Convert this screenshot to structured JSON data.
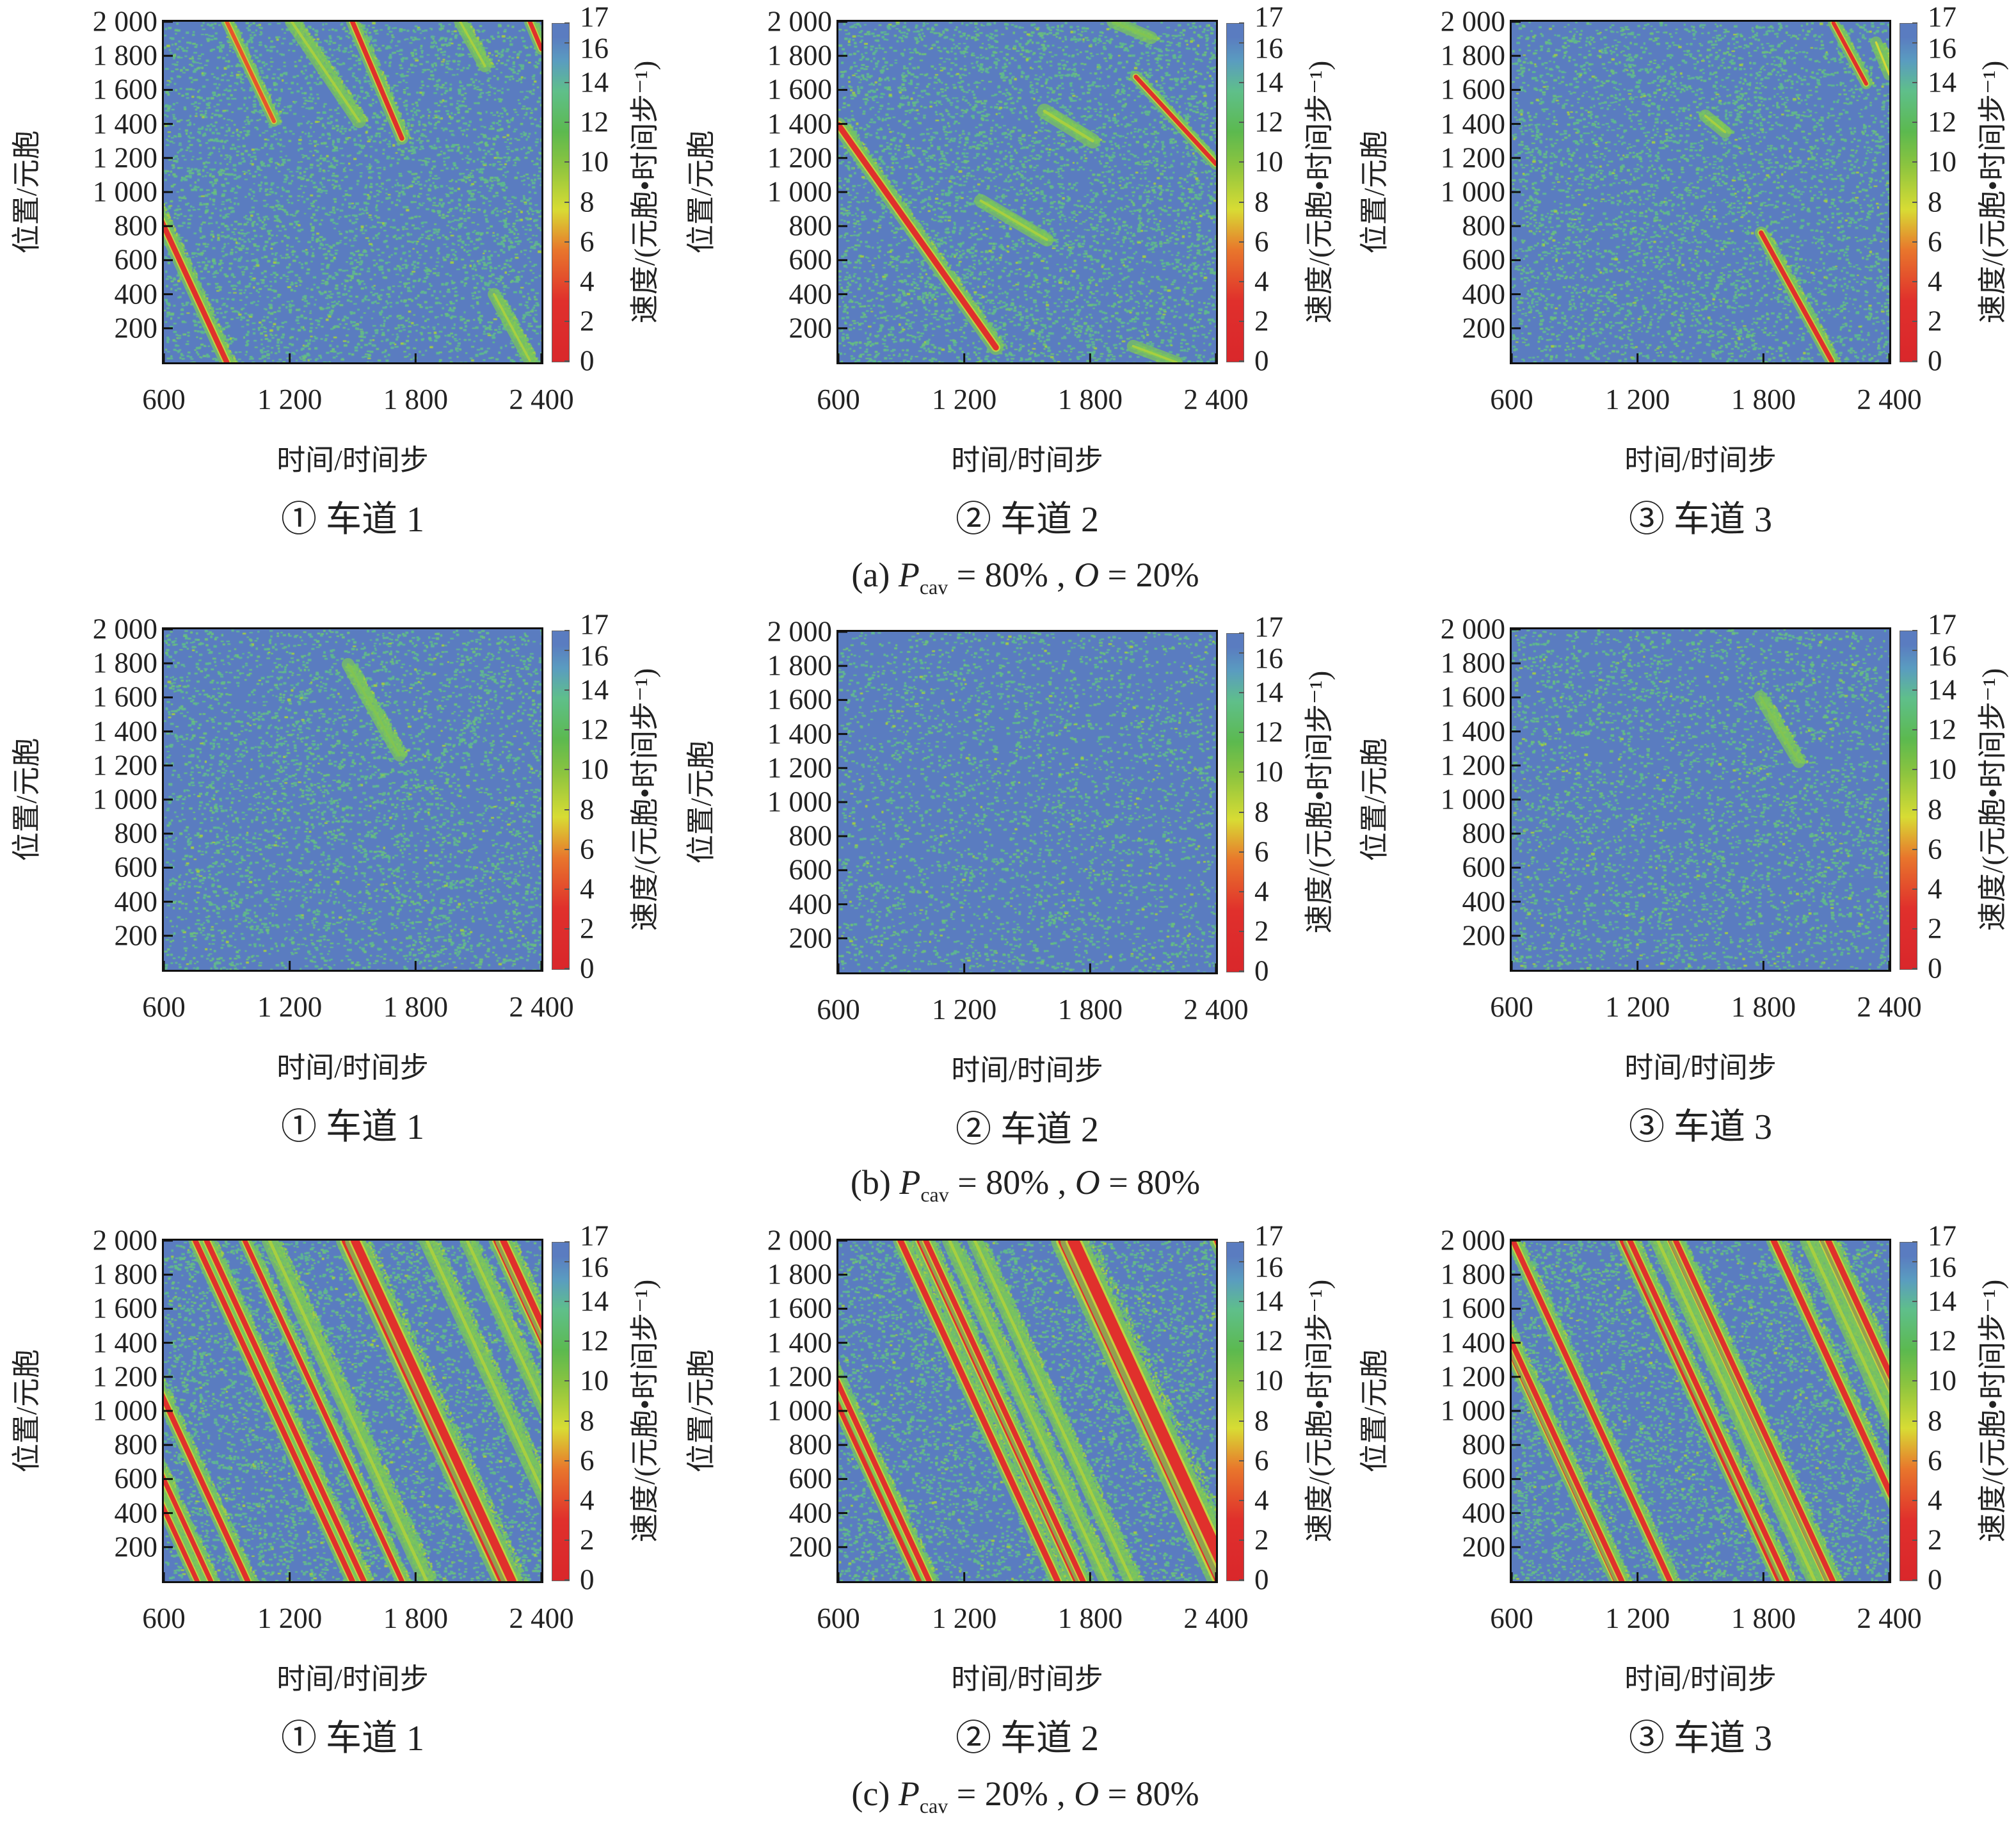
{
  "captions": [
    {
      "label": "(a)",
      "p_symbol": "P",
      "p_sub": "cav",
      "p_value": "= 80% ,",
      "o_symbol": "O",
      "o_value": "= 20%"
    },
    {
      "label": "(b)",
      "p_symbol": "P",
      "p_sub": "cav",
      "p_value": "= 80% ,",
      "o_symbol": "O",
      "o_value": "= 80%"
    },
    {
      "label": "(c)",
      "p_symbol": "P",
      "p_sub": "cav",
      "p_value": "= 20% ,",
      "o_symbol": "O",
      "o_value": "= 80%"
    }
  ],
  "colors": {
    "free_flow": "#5a7cc0",
    "speckle": "#63b98a",
    "halo": "#7cc45a",
    "jam": "#e0302c",
    "slow": "#d4d836"
  },
  "chart_data": [
    {
      "type": "heatmap",
      "group": "(a)",
      "title": "① 车道 1",
      "xlabel": "时间/时间步",
      "ylabel": "位置/元胞",
      "xlim": [
        600,
        2400
      ],
      "ylim": [
        0,
        2000
      ],
      "xticks": [
        "600",
        "1 200",
        "1 800",
        "2 400"
      ],
      "yticks": [
        "200",
        "400",
        "600",
        "800",
        "1 000",
        "1 200",
        "1 400",
        "1 600",
        "1 800",
        "2 000"
      ],
      "colorbar": {
        "label": "速度/(元胞•时间步⁻¹)",
        "range": [
          0,
          17
        ],
        "ticks": [
          "0",
          "2",
          "4",
          "6",
          "8",
          "10",
          "12",
          "14",
          "16",
          "17"
        ]
      },
      "speckle_density": 0.22,
      "jam_waves": [
        [
          150,
          2000,
          900,
          0,
          0,
          25
        ],
        [
          900,
          2000,
          1125,
          1416,
          3,
          18
        ],
        [
          1499,
          2000,
          1735,
          1315,
          0,
          22
        ],
        [
          2345,
          2000,
          2400,
          1840,
          0,
          20
        ],
        [
          1210,
          2000,
          1531,
          1416,
          9,
          25
        ],
        [
          2013,
          2000,
          2131,
          1740,
          9,
          22
        ],
        [
          2174,
          400,
          2345,
          10,
          8,
          22
        ]
      ]
    },
    {
      "type": "heatmap",
      "group": "(a)",
      "title": "② 车道 2",
      "xlabel": "时间/时间步",
      "ylabel": "位置/元胞",
      "xlim": [
        600,
        2400
      ],
      "ylim": [
        0,
        2000
      ],
      "xticks": [
        "600",
        "1 200",
        "1 800",
        "2 400"
      ],
      "yticks": [
        "200",
        "400",
        "600",
        "800",
        "1 000",
        "1 200",
        "1 400",
        "1 600",
        "1 800",
        "2 000"
      ],
      "colorbar": {
        "label": "速度/(元胞•时间步⁻¹)",
        "range": [
          0,
          17
        ],
        "ticks": [
          "0",
          "2",
          "4",
          "6",
          "8",
          "10",
          "12",
          "14",
          "16",
          "17"
        ]
      },
      "speckle_density": 0.24,
      "jam_waves": [
        [
          600,
          1394,
          1351,
          87,
          0,
          28
        ],
        [
          2018,
          1677,
          2400,
          1165,
          1,
          20
        ],
        [
          1582,
          1475,
          1812,
          1300,
          9,
          28
        ],
        [
          1279,
          949,
          1594,
          720,
          8,
          24
        ],
        [
          1909,
          2000,
          2091,
          1906,
          10,
          22
        ],
        [
          2005,
          95,
          2211,
          0,
          9,
          22
        ]
      ]
    },
    {
      "type": "heatmap",
      "group": "(a)",
      "title": "③ 车道 3",
      "xlabel": "时间/时间步",
      "ylabel": "位置/元胞",
      "xlim": [
        600,
        2400
      ],
      "ylim": [
        0,
        2000
      ],
      "xticks": [
        "600",
        "1 200",
        "1 800",
        "2 400"
      ],
      "yticks": [
        "200",
        "400",
        "600",
        "800",
        "1 000",
        "1 200",
        "1 400",
        "1 600",
        "1 800",
        "2 000"
      ],
      "colorbar": {
        "label": "速度/(元胞•时间步⁻¹)",
        "range": [
          0,
          17
        ],
        "ticks": [
          "0",
          "2",
          "4",
          "6",
          "8",
          "10",
          "12",
          "14",
          "16",
          "17"
        ]
      },
      "speckle_density": 0.22,
      "jam_waves": [
        [
          2134,
          1993,
          2290,
          1636,
          1,
          18
        ],
        [
          1789,
          761,
          2126,
          6,
          0,
          22
        ],
        [
          2337,
          1879,
          2400,
          1690,
          7,
          20
        ],
        [
          1523,
          1448,
          1617,
          1353,
          9,
          22
        ]
      ]
    },
    {
      "type": "heatmap",
      "group": "(b)",
      "title": "① 车道 1",
      "xlabel": "时间/时间步",
      "ylabel": "位置/元胞",
      "xlim": [
        600,
        2400
      ],
      "ylim": [
        0,
        2000
      ],
      "xticks": [
        "600",
        "1 200",
        "1 800",
        "2 400"
      ],
      "yticks": [
        "200",
        "400",
        "600",
        "800",
        "1 000",
        "1 200",
        "1 400",
        "1 600",
        "1 800",
        "2 000"
      ],
      "colorbar": {
        "label": "速度/(元胞•时间步⁻¹)",
        "range": [
          0,
          17
        ],
        "ticks": [
          "0",
          "2",
          "4",
          "6",
          "8",
          "10",
          "12",
          "14",
          "16",
          "17"
        ]
      },
      "speckle_density": 0.2,
      "jam_waves": [
        [
          1478,
          1794,
          1724,
          1260,
          10,
          22
        ]
      ]
    },
    {
      "type": "heatmap",
      "group": "(b)",
      "title": "② 车道 2",
      "xlabel": "时间/时间步",
      "ylabel": "位置/元胞",
      "xlim": [
        600,
        2400
      ],
      "ylim": [
        0,
        2000
      ],
      "xticks": [
        "600",
        "1 200",
        "1 800",
        "2 400"
      ],
      "yticks": [
        "200",
        "400",
        "600",
        "800",
        "1 000",
        "1 200",
        "1 400",
        "1 600",
        "1 800",
        "2 000"
      ],
      "colorbar": {
        "label": "速度/(元胞•时间步⁻¹)",
        "range": [
          0,
          17
        ],
        "ticks": [
          "0",
          "2",
          "4",
          "6",
          "8",
          "10",
          "12",
          "14",
          "16",
          "17"
        ]
      },
      "speckle_density": 0.16,
      "jam_waves": []
    },
    {
      "type": "heatmap",
      "group": "(b)",
      "title": "③ 车道 3",
      "xlabel": "时间/时间步",
      "ylabel": "位置/元胞",
      "xlim": [
        600,
        2400
      ],
      "ylim": [
        0,
        2000
      ],
      "xticks": [
        "600",
        "1 200",
        "1 800",
        "2 400"
      ],
      "yticks": [
        "200",
        "400",
        "600",
        "800",
        "1 000",
        "1 200",
        "1 400",
        "1 600",
        "1 800",
        "2 000"
      ],
      "colorbar": {
        "label": "速度/(元胞•时间步⁻¹)",
        "range": [
          0,
          17
        ],
        "ticks": [
          "0",
          "2",
          "4",
          "6",
          "8",
          "10",
          "12",
          "14",
          "16",
          "17"
        ]
      },
      "speckle_density": 0.19,
      "jam_waves": [
        [
          1785,
          1604,
          1969,
          1222,
          10,
          22
        ]
      ]
    },
    {
      "type": "heatmap",
      "group": "(c)",
      "title": "① 车道 1",
      "xlabel": "时间/时间步",
      "ylabel": "位置/元胞",
      "xlim": [
        600,
        2400
      ],
      "ylim": [
        0,
        2000
      ],
      "xticks": [
        "600",
        "1 200",
        "1 800",
        "2 400"
      ],
      "yticks": [
        "200",
        "400",
        "600",
        "800",
        "1 000",
        "1 200",
        "1 400",
        "1 600",
        "1 800",
        "2 000"
      ],
      "colorbar": {
        "label": "速度/(元胞•时间步⁻¹)",
        "range": [
          0,
          17
        ],
        "ticks": [
          "0",
          "2",
          "4",
          "6",
          "8",
          "10",
          "12",
          "14",
          "16",
          "17"
        ]
      },
      "speckle_density": 0.26,
      "jam_waves": [
        [
          10,
          2000,
          759,
          0,
          0,
          22
        ],
        [
          75,
          2000,
          824,
          0,
          0,
          22
        ],
        [
          251,
          2000,
          1000,
          0,
          0,
          25
        ],
        [
          750,
          2000,
          1499,
          0,
          0,
          25
        ],
        [
          804,
          2000,
          1553,
          0,
          0,
          25
        ],
        [
          986,
          2000,
          1735,
          0,
          0,
          22
        ],
        [
          1468,
          2000,
          2217,
          0,
          0,
          40
        ],
        [
          1511,
          2000,
          2260,
          0,
          0,
          40
        ],
        [
          2186,
          2000,
          2935,
          0,
          0,
          30
        ],
        [
          2218,
          2000,
          2967,
          0,
          0,
          30
        ],
        [
          1104,
          2000,
          1853,
          0,
          9,
          30
        ],
        [
          1854,
          2000,
          2603,
          0,
          9,
          30
        ],
        [
          2046,
          2000,
          2795,
          0,
          9,
          28
        ]
      ]
    },
    {
      "type": "heatmap",
      "group": "(c)",
      "title": "② 车道 2",
      "xlabel": "时间/时间步",
      "ylabel": "位置/元胞",
      "xlim": [
        600,
        2400
      ],
      "ylim": [
        0,
        2000
      ],
      "xticks": [
        "600",
        "1 200",
        "1 800",
        "2 400"
      ],
      "yticks": [
        "200",
        "400",
        "600",
        "800",
        "1 000",
        "1 200",
        "1 400",
        "1 600",
        "1 800",
        "2 000"
      ],
      "colorbar": {
        "label": "速度/(元胞•时间步⁻¹)",
        "range": [
          0,
          17
        ],
        "ticks": [
          "0",
          "2",
          "4",
          "6",
          "8",
          "10",
          "12",
          "14",
          "16",
          "17"
        ]
      },
      "speckle_density": 0.26,
      "jam_waves": [
        [
          238,
          2000,
          987,
          0,
          0,
          25
        ],
        [
          284,
          2000,
          1033,
          0,
          0,
          25
        ],
        [
          896,
          2000,
          1645,
          0,
          0,
          28
        ],
        [
          987,
          2000,
          1736,
          0,
          0,
          28
        ],
        [
          1017,
          2000,
          1766,
          0,
          0,
          25
        ],
        [
          1675,
          2000,
          2424,
          0,
          0,
          55
        ],
        [
          1720,
          2000,
          2469,
          0,
          0,
          55
        ],
        [
          2406,
          2000,
          3155,
          0,
          0,
          30
        ],
        [
          1130,
          2000,
          1879,
          0,
          8,
          28
        ],
        [
          1250,
          2000,
          1999,
          0,
          9,
          28
        ]
      ]
    },
    {
      "type": "heatmap",
      "group": "(c)",
      "title": "③ 车道 3",
      "xlabel": "时间/时间步",
      "ylabel": "位置/元胞",
      "xlim": [
        600,
        2400
      ],
      "ylim": [
        0,
        2000
      ],
      "xticks": [
        "600",
        "1 200",
        "1 800",
        "2 400"
      ],
      "yticks": [
        "200",
        "400",
        "600",
        "800",
        "1 000",
        "1 200",
        "1 400",
        "1 600",
        "1 800",
        "2 000"
      ],
      "colorbar": {
        "label": "速度/(元胞•时间步⁻¹)",
        "range": [
          0,
          17
        ],
        "ticks": [
          "0",
          "2",
          "4",
          "6",
          "8",
          "10",
          "12",
          "14",
          "16",
          "17"
        ]
      },
      "speckle_density": 0.27,
      "jam_waves": [
        [
          350,
          2000,
          1099,
          0,
          0,
          25
        ],
        [
          376,
          2000,
          1125,
          0,
          0,
          25
        ],
        [
          606,
          2000,
          1355,
          0,
          0,
          25
        ],
        [
          1127,
          2000,
          1876,
          0,
          0,
          25
        ],
        [
          1164,
          2000,
          1913,
          0,
          0,
          25
        ],
        [
          1358,
          2000,
          2107,
          0,
          0,
          25
        ],
        [
          1382,
          2000,
          2131,
          0,
          0,
          25
        ],
        [
          1849,
          2000,
          2598,
          0,
          0,
          28
        ],
        [
          2085,
          2000,
          2834,
          0,
          0,
          28
        ],
        [
          2109,
          2000,
          2858,
          0,
          0,
          28
        ],
        [
          1297,
          2000,
          2046,
          0,
          9,
          30
        ],
        [
          2012,
          2000,
          2761,
          0,
          9,
          30
        ]
      ]
    }
  ]
}
